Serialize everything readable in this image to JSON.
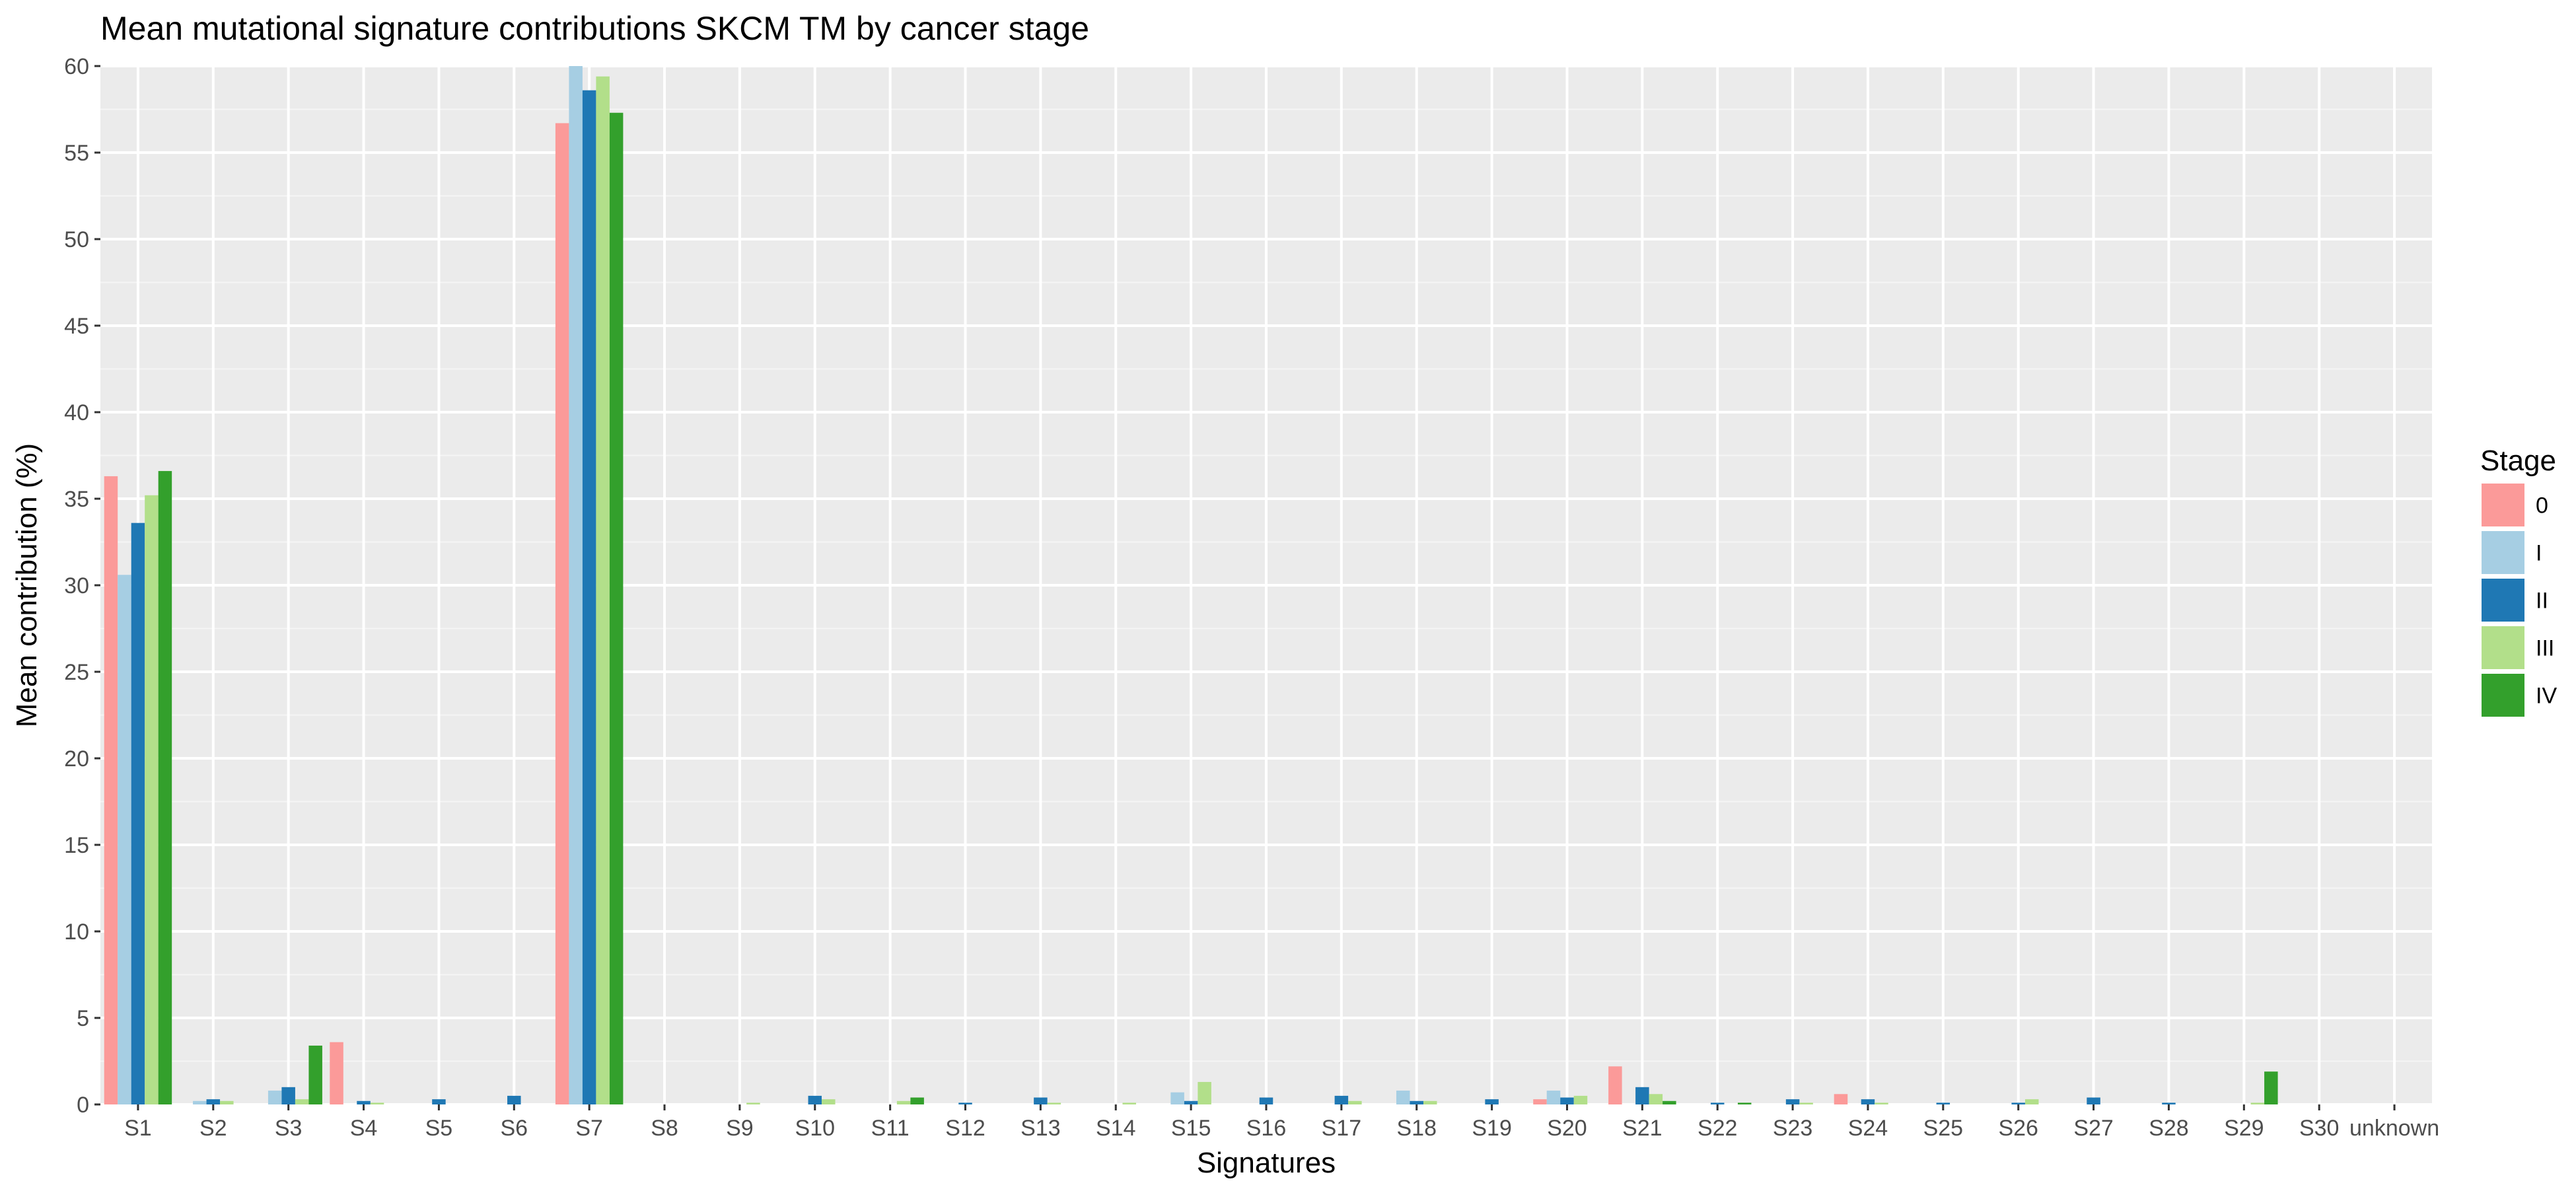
{
  "chart_data": {
    "type": "bar",
    "title": "Mean mutational signature contributions SKCM TM by cancer stage",
    "xlabel": "Signatures",
    "ylabel": "Mean contribution (%)",
    "ylim": [
      0,
      60
    ],
    "yticks": [
      0,
      5,
      10,
      15,
      20,
      25,
      30,
      35,
      40,
      45,
      50,
      55,
      60
    ],
    "grid": true,
    "legend": {
      "title": "Stage",
      "placement": "right"
    },
    "categories": [
      "S1",
      "S2",
      "S3",
      "S4",
      "S5",
      "S6",
      "S7",
      "S8",
      "S9",
      "S10",
      "S11",
      "S12",
      "S13",
      "S14",
      "S15",
      "S16",
      "S17",
      "S18",
      "S19",
      "S20",
      "S21",
      "S22",
      "S23",
      "S24",
      "S25",
      "S26",
      "S27",
      "S28",
      "S29",
      "S30",
      "unknown"
    ],
    "series": [
      {
        "name": "0",
        "color": "#fb9a99",
        "values": [
          36.3,
          0,
          0,
          3.6,
          0,
          0,
          56.7,
          0,
          0,
          0,
          0,
          0,
          0,
          0,
          0,
          0,
          0,
          0,
          0,
          0.3,
          2.2,
          0,
          0,
          0.6,
          0,
          0,
          0,
          0,
          0,
          0,
          0
        ]
      },
      {
        "name": "I",
        "color": "#a6cee3",
        "values": [
          30.6,
          0.2,
          0.8,
          0,
          0,
          0,
          60.0,
          0,
          0,
          0,
          0,
          0,
          0,
          0,
          0.7,
          0,
          0,
          0.8,
          0,
          0.8,
          0,
          0,
          0,
          0,
          0,
          0,
          0,
          0,
          0,
          0,
          0
        ]
      },
      {
        "name": "II",
        "color": "#1f78b4",
        "values": [
          33.6,
          0.3,
          1.0,
          0.2,
          0.3,
          0.5,
          58.6,
          0,
          0,
          0.5,
          0,
          0.1,
          0.4,
          0,
          0.2,
          0.4,
          0.5,
          0.2,
          0.3,
          0.4,
          1.0,
          0.1,
          0.3,
          0.3,
          0.1,
          0.1,
          0.4,
          0.1,
          0,
          0,
          0
        ]
      },
      {
        "name": "III",
        "color": "#b2df8a",
        "values": [
          35.2,
          0.2,
          0.3,
          0.1,
          0,
          0,
          59.4,
          0,
          0.1,
          0.3,
          0.2,
          0,
          0.1,
          0.1,
          1.3,
          0,
          0.2,
          0.2,
          0,
          0.5,
          0.6,
          0,
          0.1,
          0.1,
          0,
          0.3,
          0,
          0,
          0.1,
          0,
          0
        ]
      },
      {
        "name": "IV",
        "color": "#33a02c",
        "values": [
          36.6,
          0,
          3.4,
          0,
          0,
          0,
          57.3,
          0,
          0,
          0,
          0.4,
          0,
          0,
          0,
          0,
          0,
          0,
          0,
          0,
          0,
          0.2,
          0.1,
          0,
          0,
          0,
          0,
          0,
          0,
          1.9,
          0,
          0
        ]
      }
    ],
    "panel_background": "#ebebeb"
  }
}
